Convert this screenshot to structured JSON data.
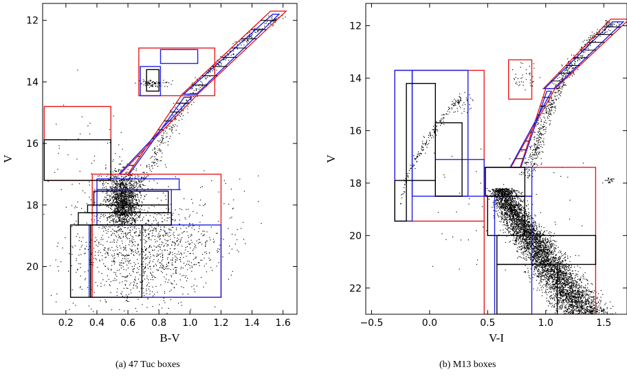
{
  "chart_data": [
    {
      "type": "scatter",
      "caption": "(a) 47 Tuc boxes",
      "xlabel": "B-V",
      "ylabel": "V",
      "xlim": [
        0.05,
        1.69
      ],
      "ylim": [
        21.55,
        11.45
      ],
      "y_inverted": true,
      "xticks": [
        0.2,
        0.4,
        0.6,
        0.8,
        1.0,
        1.2,
        1.4,
        1.6
      ],
      "xtick_labels": [
        "0.2",
        "0.4",
        "0.6",
        "0.8",
        "1.0",
        "1.2",
        "1.4",
        "1.6"
      ],
      "yticks": [
        12,
        14,
        16,
        18,
        20
      ],
      "ytick_labels": [
        "12",
        "14",
        "16",
        "18",
        "20"
      ],
      "grid": false,
      "point_color": "#000000",
      "box_colors": {
        "outer": "#e8191b",
        "mid": "#1f1fe6",
        "inner": "#000000"
      },
      "ridgelines": [
        {
          "name": "rgb_blue",
          "x": [
            0.58,
            0.7,
            0.78,
            0.85,
            0.95,
            1.1,
            1.3,
            1.45,
            1.55
          ],
          "y": [
            17.5,
            16.7,
            15.6,
            15.0,
            14.3,
            13.5,
            12.7,
            12.2,
            11.9
          ]
        },
        {
          "name": "rgb_red",
          "x": [
            0.72,
            0.84,
            0.93,
            1.02,
            1.12,
            1.3,
            1.45,
            1.58
          ],
          "y": [
            17.5,
            16.6,
            15.6,
            14.8,
            14.1,
            13.1,
            12.4,
            12.0
          ]
        }
      ],
      "boxes": [
        {
          "color": "red",
          "x0": 0.55,
          "y0": 17.0,
          "x1": 1.05,
          "y1": 14.4,
          "style": "strip",
          "xb0": 0.6,
          "xb1": 0.95
        },
        {
          "color": "red",
          "x0": 1.05,
          "y0": 14.4,
          "x1": 1.62,
          "y1": 11.7,
          "style": "strip",
          "xb0": 0.95,
          "xb1": 1.52
        },
        {
          "color": "red",
          "x0": 0.67,
          "y0": 14.45,
          "x1": 1.16,
          "y1": 12.9
        },
        {
          "color": "red",
          "x0": 0.06,
          "y0": 17.2,
          "x1": 0.49,
          "y1": 14.8
        },
        {
          "color": "red",
          "x0": 0.37,
          "y0": 21.0,
          "x1": 1.2,
          "y1": 17.0
        },
        {
          "color": "blue",
          "x0": 0.68,
          "y0": 14.45,
          "x1": 0.81,
          "y1": 13.5
        },
        {
          "color": "blue",
          "x0": 0.81,
          "y0": 13.4,
          "x1": 1.05,
          "y1": 12.95
        },
        {
          "color": "blue",
          "x0": 0.4,
          "y0": 17.5,
          "x1": 0.93,
          "y1": 17.15
        },
        {
          "color": "blue",
          "x0": 0.4,
          "y0": 18.65,
          "x1": 0.88,
          "y1": 17.5
        },
        {
          "color": "blue",
          "x0": 0.35,
          "y0": 21.0,
          "x1": 1.2,
          "y1": 18.65
        },
        {
          "color": "black",
          "x0": 0.06,
          "y0": 17.2,
          "x1": 0.49,
          "y1": 15.88
        },
        {
          "color": "black",
          "x0": 0.72,
          "y0": 14.3,
          "x1": 0.8,
          "y1": 13.6
        },
        {
          "color": "black",
          "x0": 0.38,
          "y0": 18.0,
          "x1": 0.86,
          "y1": 17.55
        },
        {
          "color": "black",
          "x0": 0.34,
          "y0": 18.25,
          "x1": 0.86,
          "y1": 18.0
        },
        {
          "color": "black",
          "x0": 0.28,
          "y0": 18.65,
          "x1": 0.88,
          "y1": 18.25
        },
        {
          "color": "black",
          "x0": 0.23,
          "y0": 21.0,
          "x1": 0.36,
          "y1": 18.65
        },
        {
          "color": "black",
          "x0": 0.36,
          "y0": 21.0,
          "x1": 0.69,
          "y1": 18.65
        }
      ],
      "groups": [
        {
          "n": 1500,
          "cx": 0.57,
          "cy": 17.85,
          "sx": 0.05,
          "sy": 0.45,
          "shape": "disk"
        },
        {
          "n": 1200,
          "cx": 0.7,
          "cy": 19.5,
          "sx": 0.23,
          "sy": 0.9,
          "shape": "blob"
        },
        {
          "n": 420,
          "cx": 0.9,
          "cy": 15.5,
          "sx": 0.025,
          "sy": 0.0,
          "shape": "rgb"
        },
        {
          "n": 90,
          "cx": 0.76,
          "cy": 14.05,
          "sx": 0.04,
          "sy": 0.05,
          "shape": "blob"
        },
        {
          "n": 60,
          "cx": 0.58,
          "cy": 17.2,
          "sx": 0.12,
          "sy": 0.15,
          "shape": "blob"
        },
        {
          "n": 45,
          "cx": 0.32,
          "cy": 16.5,
          "sx": 0.18,
          "sy": 1.2,
          "shape": "blob"
        },
        {
          "n": 45,
          "cx": 0.9,
          "cy": 18.5,
          "sx": 0.55,
          "sy": 1.8,
          "shape": "uniform"
        }
      ]
    },
    {
      "type": "scatter",
      "caption": "(b) M13 boxes",
      "xlabel": "V-I",
      "ylabel": "V",
      "xlim": [
        -0.55,
        1.7
      ],
      "ylim": [
        23.0,
        11.15
      ],
      "y_inverted": true,
      "xticks": [
        -0.5,
        0.0,
        0.5,
        1.0,
        1.5
      ],
      "xtick_labels": [
        "−0.5",
        "0.0",
        "0.5",
        "1.0",
        "1.5"
      ],
      "yticks": [
        12,
        14,
        16,
        18,
        20,
        22
      ],
      "ytick_labels": [
        "12",
        "14",
        "16",
        "18",
        "20",
        "22"
      ],
      "grid": false,
      "point_color": "#000000",
      "box_colors": {
        "outer": "#e8191b",
        "mid": "#1f1fe6",
        "inner": "#000000"
      },
      "ridgelines": [
        {
          "name": "rgb_blue",
          "x": [
            0.78,
            0.86,
            0.95,
            1.08,
            1.2,
            1.35,
            1.52
          ],
          "y": [
            17.8,
            16.6,
            15.5,
            14.3,
            13.4,
            12.5,
            12.0
          ]
        },
        {
          "name": "rgb_red",
          "x": [
            0.9,
            0.98,
            1.05,
            1.15,
            1.28,
            1.42,
            1.58
          ],
          "y": [
            17.8,
            16.6,
            15.5,
            14.4,
            13.4,
            12.6,
            12.0
          ]
        }
      ],
      "boxes": [
        {
          "color": "red",
          "x0": 0.7,
          "y0": 17.4,
          "x1": 1.08,
          "y1": 14.4,
          "style": "strip",
          "xb0": 0.78,
          "xb1": 1.0
        },
        {
          "color": "red",
          "x0": 1.08,
          "y0": 14.4,
          "x1": 1.72,
          "y1": 11.75,
          "style": "strip",
          "xb0": 0.98,
          "xb1": 1.56
        },
        {
          "color": "red",
          "x0": 0.68,
          "y0": 14.8,
          "x1": 0.88,
          "y1": 13.3
        },
        {
          "color": "red",
          "x0": -0.3,
          "y0": 19.45,
          "x1": 0.47,
          "y1": 13.7
        },
        {
          "color": "red",
          "x0": 0.47,
          "y0": 23.0,
          "x1": 1.43,
          "y1": 17.4
        },
        {
          "color": "blue",
          "x0": -0.3,
          "y0": 19.45,
          "x1": -0.15,
          "y1": 13.7
        },
        {
          "color": "blue",
          "x0": -0.15,
          "y0": 18.5,
          "x1": 0.33,
          "y1": 13.7
        },
        {
          "color": "blue",
          "x0": 0.05,
          "y0": 18.5,
          "x1": 0.47,
          "y1": 17.1
        },
        {
          "color": "blue",
          "x0": 0.48,
          "y0": 18.5,
          "x1": 0.88,
          "y1": 17.4
        },
        {
          "color": "blue",
          "x0": 0.56,
          "y0": 23.0,
          "x1": 0.88,
          "y1": 18.5
        },
        {
          "color": "blue",
          "x0": 0.48,
          "y0": 20.0,
          "x1": 1.43,
          "y1": 20.0
        },
        {
          "color": "black",
          "x0": -0.3,
          "y0": 19.45,
          "x1": -0.2,
          "y1": 17.9
        },
        {
          "color": "black",
          "x0": -0.2,
          "y0": 17.9,
          "x1": 0.05,
          "y1": 14.2
        },
        {
          "color": "black",
          "x0": 0.05,
          "y0": 18.5,
          "x1": 0.28,
          "y1": 15.7
        },
        {
          "color": "black",
          "x0": 0.48,
          "y0": 18.5,
          "x1": 0.82,
          "y1": 17.4
        },
        {
          "color": "black",
          "x0": 0.5,
          "y0": 20.0,
          "x1": 0.82,
          "y1": 18.5
        },
        {
          "color": "black",
          "x0": 0.58,
          "y0": 21.1,
          "x1": 1.43,
          "y1": 20.0
        },
        {
          "color": "black",
          "x0": 0.58,
          "y0": 23.0,
          "x1": 1.1,
          "y1": 21.1
        }
      ],
      "groups": [
        {
          "n": 5200,
          "cx": 0.0,
          "cy": 0.0,
          "sx": 0.055,
          "sy": 0.0,
          "shape": "ms"
        },
        {
          "n": 650,
          "cx": 0.0,
          "cy": 0.0,
          "sx": 0.03,
          "sy": 0.0,
          "shape": "rgb2"
        },
        {
          "n": 220,
          "cx": 0.0,
          "cy": 0.0,
          "sx": 0.04,
          "sy": 0.0,
          "shape": "hb"
        },
        {
          "n": 40,
          "cx": 0.8,
          "cy": 14.0,
          "sx": 0.06,
          "sy": 0.3,
          "shape": "blob"
        },
        {
          "n": 60,
          "cx": 0.7,
          "cy": 19.0,
          "sx": 0.7,
          "sy": 2.5,
          "shape": "uniform"
        }
      ]
    }
  ]
}
